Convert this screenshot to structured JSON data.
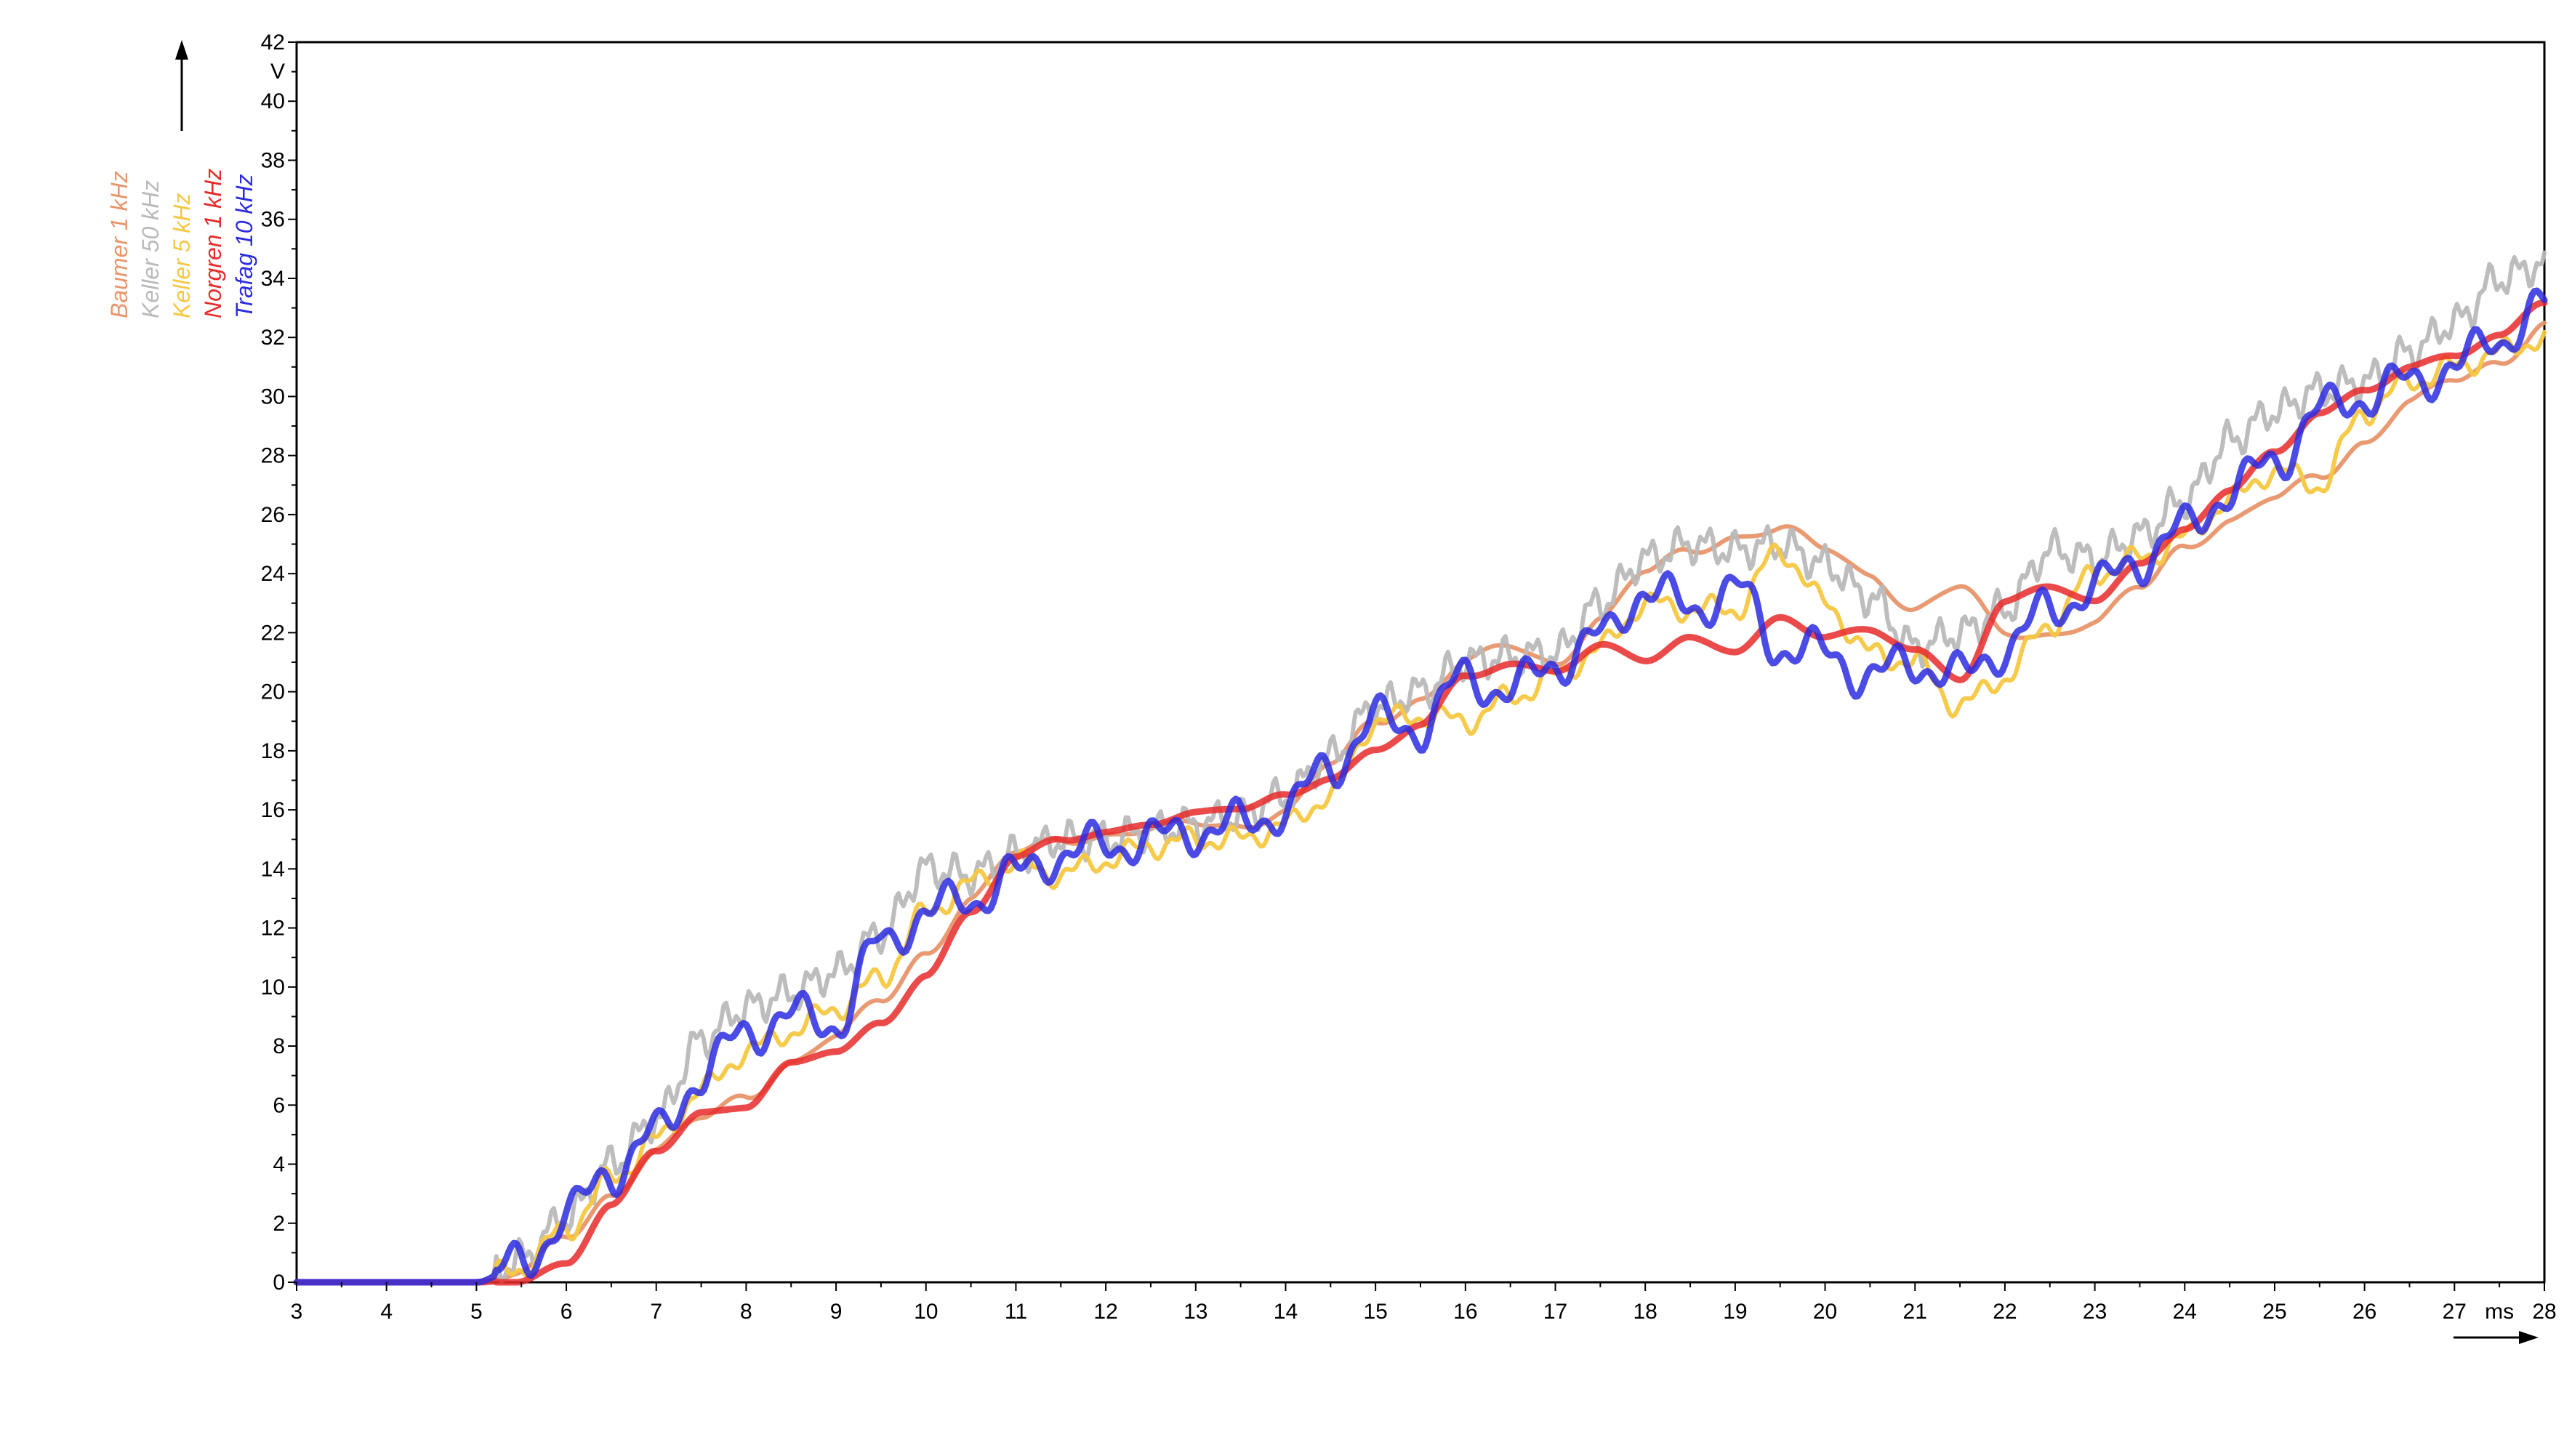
{
  "chart_data": {
    "type": "line",
    "title": "",
    "xlabel": "ms",
    "ylabel": "V",
    "xlim": [
      3,
      28
    ],
    "ylim": [
      0,
      42
    ],
    "x_ticks": [
      3,
      4,
      5,
      6,
      7,
      8,
      9,
      10,
      11,
      12,
      13,
      14,
      15,
      16,
      17,
      18,
      19,
      20,
      21,
      22,
      23,
      24,
      25,
      26,
      27,
      28
    ],
    "y_ticks": [
      0,
      2,
      4,
      6,
      8,
      10,
      12,
      14,
      16,
      18,
      20,
      22,
      24,
      26,
      28,
      30,
      32,
      34,
      36,
      38,
      40,
      42
    ],
    "grid": false,
    "legend_placement": "left, rotated vertical",
    "x": [
      3,
      4,
      5,
      5.5,
      6,
      6.5,
      7,
      7.5,
      8,
      8.5,
      9,
      9.5,
      10,
      10.5,
      11,
      11.5,
      12,
      12.5,
      13,
      13.5,
      14,
      14.5,
      15,
      15.5,
      16,
      16.5,
      17,
      17.5,
      18,
      18.5,
      19,
      19.5,
      20,
      20.5,
      21,
      21.5,
      22,
      22.5,
      23,
      23.5,
      24,
      24.5,
      25,
      25.5,
      26,
      26.5,
      27,
      27.5,
      28
    ],
    "series": [
      {
        "name": "Baumer 1 kHz",
        "color": "#e8956a",
        "values": [
          0,
          0,
          0,
          0.3,
          1.5,
          3.0,
          4.5,
          5.5,
          6.3,
          7.5,
          8.3,
          9.5,
          11.2,
          13.0,
          14.5,
          15.0,
          15.2,
          15.3,
          15.5,
          15.5,
          16.0,
          17.5,
          19.0,
          19.8,
          21.0,
          21.5,
          21.0,
          22.5,
          24.0,
          24.8,
          25.3,
          25.5,
          24.8,
          24.0,
          22.8,
          23.5,
          22.0,
          22.0,
          22.3,
          23.5,
          25.0,
          25.8,
          26.5,
          27.3,
          28.5,
          29.8,
          30.5,
          31.2,
          32.5
        ]
      },
      {
        "name": "Keller 50 kHz",
        "color": "#b9b9b9",
        "values": [
          0,
          0,
          0,
          0.8,
          2.2,
          4.0,
          5.5,
          8.2,
          9.3,
          9.8,
          10.5,
          11.8,
          14.0,
          13.8,
          14.5,
          15.0,
          15.0,
          15.3,
          15.5,
          15.8,
          16.5,
          17.8,
          19.5,
          20.0,
          21.0,
          21.2,
          21.3,
          23.0,
          24.5,
          25.0,
          24.8,
          25.0,
          24.3,
          23.2,
          21.5,
          22.0,
          22.8,
          24.8,
          24.5,
          25.3,
          26.5,
          28.5,
          29.5,
          30.2,
          30.5,
          31.5,
          32.5,
          34.0,
          34.5
        ]
      },
      {
        "name": "Keller 5 kHz",
        "color": "#f5c842",
        "values": [
          0,
          0,
          0,
          0.5,
          1.8,
          3.5,
          4.8,
          6.5,
          7.8,
          8.5,
          9.3,
          10.3,
          12.5,
          13.5,
          14.2,
          13.8,
          14.3,
          14.8,
          15.0,
          15.0,
          15.5,
          16.5,
          19.0,
          19.2,
          19.0,
          19.8,
          20.5,
          21.5,
          23.0,
          22.8,
          22.8,
          24.8,
          23.0,
          21.3,
          21.0,
          19.5,
          20.5,
          22.3,
          24.0,
          24.5,
          25.2,
          26.5,
          27.5,
          27.0,
          29.5,
          30.5,
          31.0,
          31.5,
          32.0
        ]
      },
      {
        "name": "Norgren 1 kHz",
        "color": "#e82a2a",
        "values": [
          0,
          0,
          0,
          0.1,
          0.6,
          2.5,
          4.5,
          5.8,
          6.0,
          7.3,
          7.8,
          8.8,
          10.5,
          12.5,
          14.3,
          15.0,
          15.3,
          15.6,
          15.8,
          16.0,
          16.5,
          17.2,
          18.0,
          18.8,
          20.5,
          21.0,
          20.8,
          21.5,
          21.0,
          21.8,
          21.5,
          22.5,
          21.8,
          22.0,
          21.5,
          20.5,
          23.0,
          23.5,
          23.0,
          24.5,
          25.5,
          26.8,
          28.0,
          29.5,
          30.3,
          31.0,
          31.3,
          32.0,
          33.3
        ]
      },
      {
        "name": "Trafag 10 kHz",
        "color": "#2c2ce0",
        "values": [
          0,
          0,
          0,
          0.6,
          2.2,
          3.8,
          5.0,
          7.0,
          8.5,
          9.0,
          8.8,
          11.5,
          12.5,
          13.0,
          13.8,
          14.5,
          14.8,
          15.0,
          15.3,
          15.5,
          16.0,
          17.5,
          19.0,
          18.8,
          20.5,
          20.0,
          21.0,
          21.8,
          23.5,
          22.8,
          23.5,
          21.5,
          21.3,
          20.5,
          21.0,
          20.5,
          21.5,
          22.8,
          23.5,
          24.5,
          25.5,
          26.8,
          27.8,
          29.5,
          30.0,
          30.5,
          31.0,
          32.0,
          33.0
        ]
      }
    ]
  }
}
